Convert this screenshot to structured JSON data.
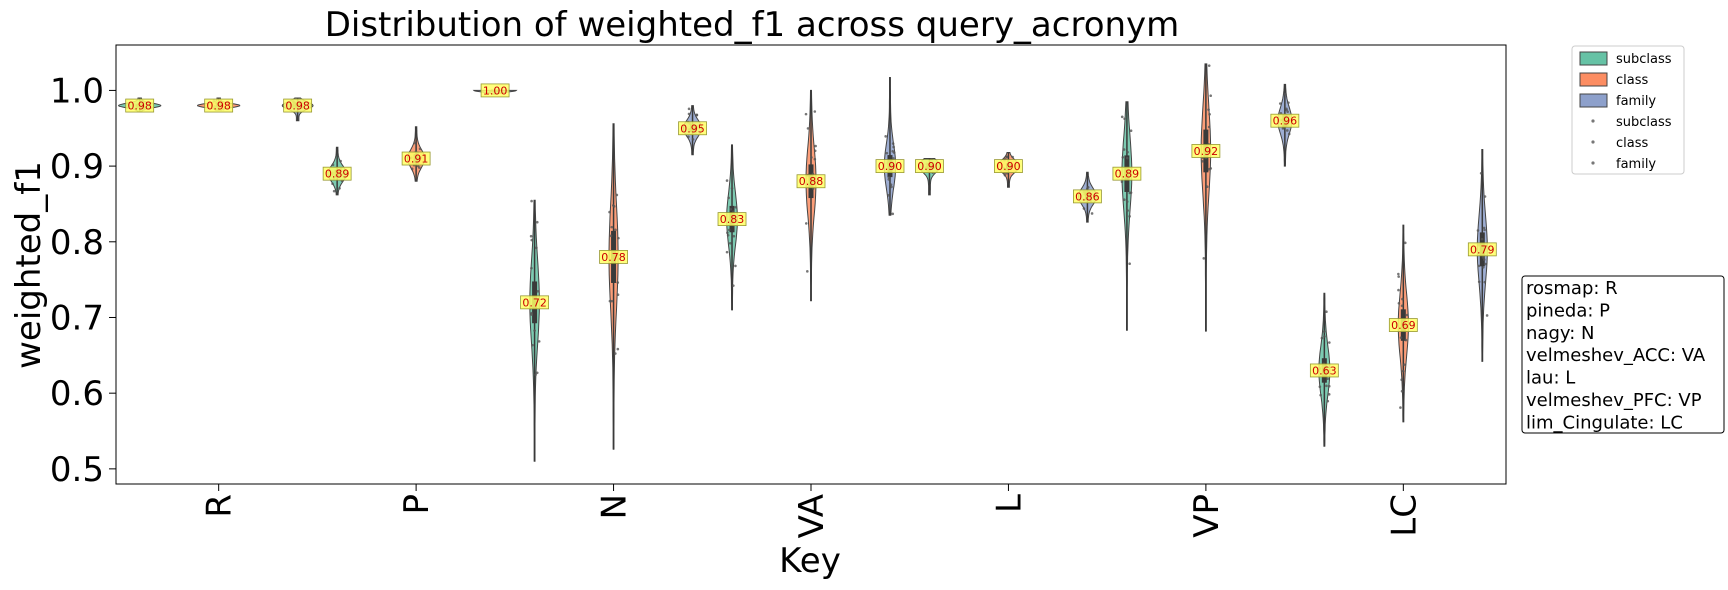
{
  "chart_data": {
    "type": "violin",
    "title": "Distribution of weighted_f1 across query_acronym",
    "xlabel": "Key",
    "ylabel": "weighted_f1",
    "ylim": [
      0.48,
      1.06
    ],
    "yticks": [
      "0.5",
      "0.6",
      "0.7",
      "0.8",
      "0.9",
      "1.0"
    ],
    "categories": [
      "R",
      "P",
      "N",
      "VA",
      "L",
      "VP",
      "LC"
    ],
    "series": [
      {
        "name": "subclass",
        "color": "#66c2a5",
        "medians": [
          0.98,
          0.89,
          0.72,
          0.83,
          0.9,
          0.89,
          0.63
        ]
      },
      {
        "name": "class",
        "color": "#fc8d62",
        "medians": [
          0.98,
          0.91,
          0.78,
          0.88,
          0.9,
          0.92,
          0.69
        ]
      },
      {
        "name": "family",
        "color": "#8da0cb",
        "medians": [
          0.98,
          1.0,
          0.95,
          0.9,
          0.86,
          0.96,
          0.79
        ]
      }
    ],
    "value_labels": [
      [
        "0.98",
        "0.89",
        "0.72",
        "0.83",
        "0.90",
        "0.89",
        "0.63"
      ],
      [
        "0.98",
        "0.91",
        "0.78",
        "0.88",
        "0.90",
        "0.92",
        "0.69"
      ],
      [
        "0.98",
        "1.00",
        "0.95",
        "0.90",
        "0.86",
        "0.96",
        "0.79"
      ]
    ],
    "ranges": [
      [
        [
          0.972,
          0.99
        ],
        [
          0.862,
          0.925
        ],
        [
          0.51,
          0.855
        ],
        [
          0.71,
          0.928
        ],
        [
          0.862,
          0.91
        ],
        [
          0.683,
          0.985
        ],
        [
          0.53,
          0.732
        ]
      ],
      [
        [
          0.974,
          0.99
        ],
        [
          0.88,
          0.952
        ],
        [
          0.526,
          0.956
        ],
        [
          0.722,
          1.0
        ],
        [
          0.872,
          0.918
        ],
        [
          0.682,
          1.035
        ],
        [
          0.562,
          0.822
        ]
      ],
      [
        [
          0.96,
          0.99
        ],
        [
          0.995,
          1.0
        ],
        [
          0.915,
          0.98
        ],
        [
          0.835,
          1.017
        ],
        [
          0.826,
          0.892
        ],
        [
          0.9,
          1.008
        ],
        [
          0.642,
          0.922
        ]
      ]
    ],
    "legend": {
      "placement": "outside-right",
      "entries": [
        "subclass",
        "class",
        "family",
        "subclass",
        "class",
        "family"
      ]
    },
    "key_box": [
      "rosmap: R",
      "pineda: P",
      "nagy: N",
      "velmeshev_ACC: VA",
      "lau: L",
      "velmeshev_PFC: VP",
      "lim_Cingulate: LC"
    ],
    "grid": false
  }
}
